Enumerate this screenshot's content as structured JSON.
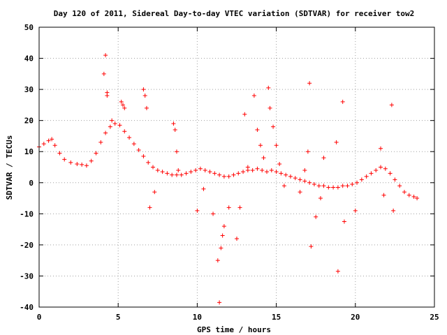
{
  "chart_data": {
    "type": "scatter",
    "title": "Day 120 of 2011, Sidereal Day-to-day VTEC variation (SDTVAR) for receiver tow2",
    "xlabel": "GPS time / hours",
    "ylabel": "SDTVAR / TECUs",
    "xlim": [
      0,
      25
    ],
    "ylim": [
      -40,
      50
    ],
    "x_ticks": [
      0,
      5,
      10,
      15,
      20,
      25
    ],
    "y_ticks": [
      -40,
      -30,
      -20,
      -10,
      0,
      10,
      20,
      30,
      40,
      50
    ],
    "x_tick_labels": [
      "0",
      "5",
      "10",
      "15",
      "20",
      "25"
    ],
    "y_tick_labels": [
      "-40",
      "-30",
      "-20",
      "-10",
      "0",
      "10",
      "20",
      "30",
      "40",
      "50"
    ],
    "grid": true,
    "marker": "+",
    "color": "#ff0000",
    "series": [
      {
        "x": [
          0.0,
          0.3,
          0.6,
          0.8,
          1.0,
          1.3,
          1.6,
          2.0,
          2.4,
          2.7,
          3.0,
          3.3,
          3.6,
          3.9,
          4.2,
          4.5,
          4.8,
          5.1,
          5.4,
          5.7,
          6.0,
          6.3,
          6.6,
          6.9,
          7.2,
          7.5,
          7.8,
          8.1,
          8.4,
          8.7,
          9.0,
          9.3,
          9.6,
          9.9,
          10.2,
          10.5,
          10.8,
          11.1,
          11.4,
          11.7,
          12.0,
          12.3,
          12.6,
          12.9,
          13.2,
          13.5,
          13.8,
          14.1,
          14.4,
          14.7,
          15.0,
          15.3,
          15.6,
          15.9,
          16.2,
          16.5,
          16.8,
          17.1,
          17.4,
          17.7,
          18.0,
          18.3,
          18.6,
          18.9,
          19.2,
          19.5,
          19.8,
          20.1,
          20.4,
          20.7,
          21.0,
          21.3,
          21.6,
          21.9,
          22.2,
          22.5,
          22.8,
          23.1,
          23.4,
          23.7,
          23.9
        ],
        "y": [
          11.5,
          12.5,
          13.5,
          14.0,
          12.0,
          9.5,
          7.5,
          6.5,
          6.0,
          5.8,
          5.5,
          7.0,
          9.5,
          13.0,
          16.0,
          18.0,
          19.0,
          18.5,
          16.5,
          14.5,
          12.5,
          10.5,
          8.5,
          6.5,
          5.0,
          4.0,
          3.5,
          3.0,
          2.5,
          2.5,
          2.5,
          3.0,
          3.5,
          4.0,
          4.5,
          4.0,
          3.5,
          3.0,
          2.5,
          2.0,
          2.0,
          2.5,
          3.0,
          3.5,
          4.0,
          4.0,
          4.5,
          4.0,
          3.5,
          4.0,
          3.5,
          3.0,
          2.5,
          2.0,
          1.5,
          1.0,
          0.5,
          0.0,
          -0.5,
          -1.0,
          -1.0,
          -1.5,
          -1.5,
          -1.5,
          -1.0,
          -1.0,
          -0.5,
          0.0,
          1.0,
          2.0,
          3.0,
          4.0,
          5.0,
          4.5,
          3.0,
          1.0,
          -1.0,
          -3.0,
          -4.0,
          -4.5,
          -5.0
        ]
      },
      {
        "x": [
          4.1,
          4.2,
          4.3,
          4.3,
          4.6,
          5.2,
          5.3,
          5.4,
          6.6,
          6.7,
          6.8,
          7.0,
          7.3,
          8.5,
          8.6,
          8.7,
          8.8,
          10.0,
          10.4,
          11.0,
          11.3,
          11.4,
          11.5,
          11.6,
          11.7,
          12.0,
          12.5,
          12.7,
          13.0,
          13.2,
          13.6,
          13.8,
          14.0,
          14.2,
          14.5,
          14.6,
          14.8,
          15.0,
          15.2,
          15.5,
          16.5,
          16.8,
          17.0,
          17.1,
          17.2,
          17.5,
          17.8,
          18.0,
          18.8,
          18.9,
          19.2,
          19.3,
          20.0,
          21.6,
          21.8,
          22.3,
          22.4
        ],
        "y": [
          35.0,
          41.0,
          29.0,
          28.0,
          20.0,
          26.0,
          25.0,
          24.0,
          30.0,
          28.0,
          24.0,
          -8.0,
          -3.0,
          19.0,
          17.0,
          10.0,
          4.0,
          -9.0,
          -2.0,
          -10.0,
          -25.0,
          -38.5,
          -21.0,
          -17.0,
          -14.0,
          -8.0,
          -18.0,
          -8.0,
          22.0,
          5.0,
          28.0,
          17.0,
          12.0,
          8.0,
          30.5,
          24.0,
          18.0,
          12.0,
          6.0,
          -1.0,
          -3.0,
          4.0,
          10.0,
          32.0,
          -20.5,
          -11.0,
          -5.0,
          8.0,
          13.0,
          -28.5,
          26.0,
          -12.5,
          -9.0,
          11.0,
          -4.0,
          25.0,
          -9.0
        ]
      }
    ]
  }
}
